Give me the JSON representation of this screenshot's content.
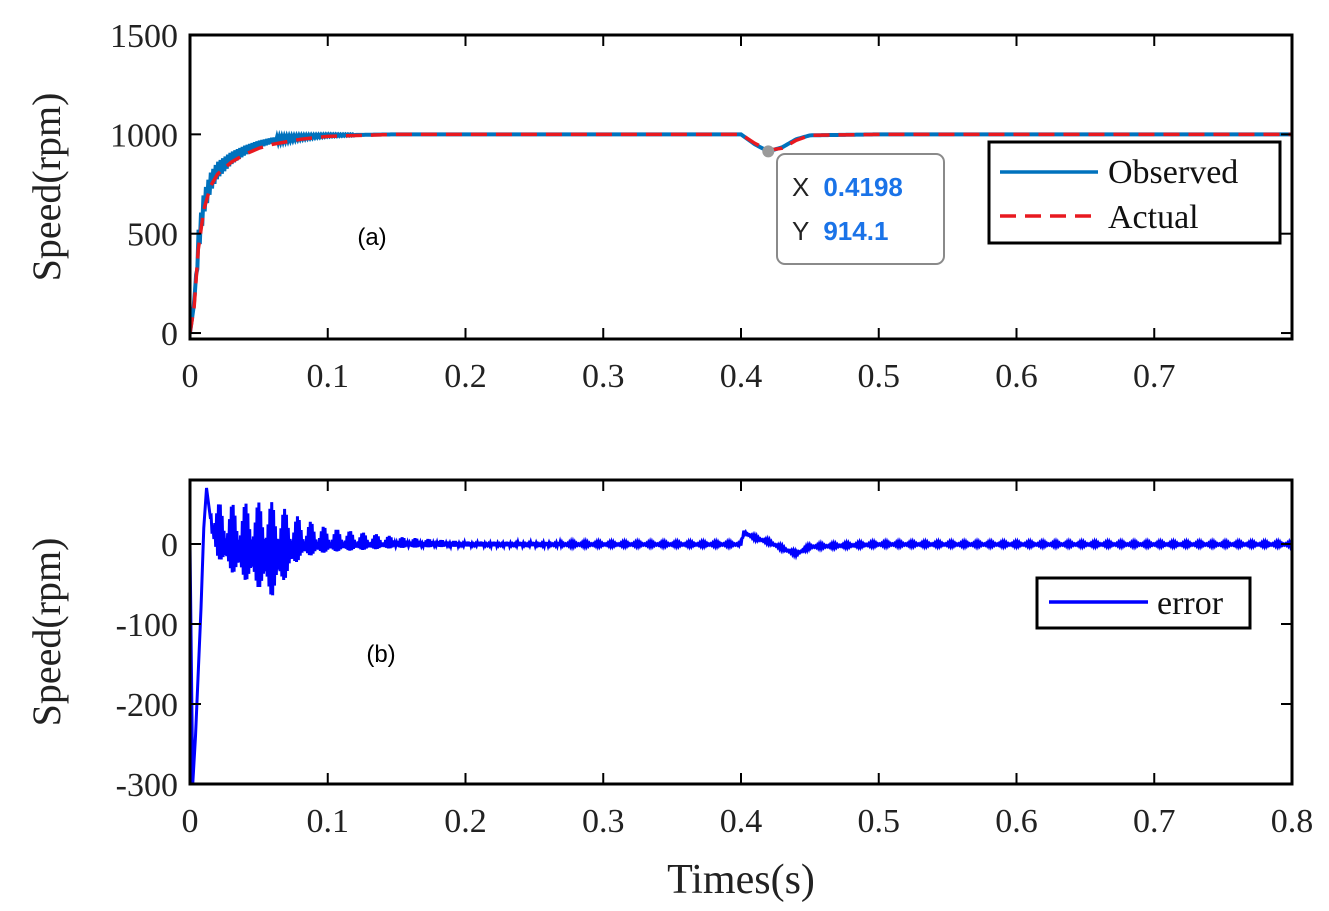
{
  "chart_data": [
    {
      "id": "a",
      "type": "line",
      "panel_label": "(a)",
      "ylabel": "Speed(rpm)",
      "xlabel": "",
      "xlim": [
        0,
        0.8
      ],
      "ylim": [
        -30,
        1500
      ],
      "xticks": [
        0,
        0.1,
        0.2,
        0.3,
        0.4,
        0.5,
        0.6,
        0.7
      ],
      "xtick_labels": [
        "0",
        "0.1",
        "0.2",
        "0.3",
        "0.4",
        "0.5",
        "0.6",
        "0.7"
      ],
      "yticks": [
        0,
        500,
        1000,
        1500
      ],
      "ytick_labels": [
        "0",
        "500",
        "1000",
        "1500"
      ],
      "legend_position": "right",
      "series": [
        {
          "name": "Observed",
          "color": "#0072BD",
          "style": "solid",
          "x": [
            0,
            0.003,
            0.006,
            0.01,
            0.015,
            0.02,
            0.03,
            0.04,
            0.05,
            0.06,
            0.08,
            0.1,
            0.15,
            0.2,
            0.3,
            0.4,
            0.41,
            0.4198,
            0.43,
            0.44,
            0.45,
            0.5,
            0.6,
            0.7,
            0.8
          ],
          "y": [
            0,
            150,
            450,
            650,
            760,
            820,
            880,
            920,
            950,
            970,
            985,
            995,
            1000,
            1000,
            1000,
            1000,
            950,
            914.1,
            935,
            975,
            995,
            1000,
            1000,
            1000,
            1000
          ]
        },
        {
          "name": "Actual",
          "color": "#E8191F",
          "style": "dashed",
          "x": [
            0,
            0.003,
            0.006,
            0.01,
            0.015,
            0.02,
            0.03,
            0.04,
            0.05,
            0.06,
            0.08,
            0.1,
            0.15,
            0.2,
            0.3,
            0.4,
            0.41,
            0.42,
            0.43,
            0.44,
            0.45,
            0.5,
            0.6,
            0.7,
            0.8
          ],
          "y": [
            0,
            130,
            420,
            620,
            740,
            800,
            860,
            900,
            930,
            950,
            975,
            990,
            1000,
            1000,
            1000,
            1000,
            955,
            920,
            930,
            970,
            995,
            1000,
            1000,
            1000,
            1000
          ]
        }
      ],
      "datatip": {
        "x_label": "X",
        "x_value": "0.4198",
        "y_label": "Y",
        "y_value": "914.1"
      }
    },
    {
      "id": "b",
      "type": "line",
      "panel_label": "(b)",
      "ylabel": "Speed(rpm)",
      "xlabel": "Times(s)",
      "xlim": [
        0,
        0.8
      ],
      "ylim": [
        -300,
        80
      ],
      "xticks": [
        0,
        0.1,
        0.2,
        0.3,
        0.4,
        0.5,
        0.6,
        0.7,
        0.8
      ],
      "xtick_labels": [
        "0",
        "0.1",
        "0.2",
        "0.3",
        "0.4",
        "0.5",
        "0.6",
        "0.7",
        "0.8"
      ],
      "yticks": [
        -300,
        -200,
        -100,
        0
      ],
      "ytick_labels": [
        "-300",
        "-200",
        "-100",
        "0"
      ],
      "legend_position": "right",
      "series": [
        {
          "name": "error",
          "color": "#0000FF",
          "style": "solid",
          "x": [
            0,
            0.002,
            0.004,
            0.006,
            0.008,
            0.01,
            0.012,
            0.015,
            0.02,
            0.03,
            0.05,
            0.08,
            0.1,
            0.15,
            0.2,
            0.3,
            0.4,
            0.402,
            0.41,
            0.42,
            0.43,
            0.44,
            0.45,
            0.5,
            0.6,
            0.7,
            0.8
          ],
          "y": [
            0,
            -300,
            -240,
            -160,
            -80,
            20,
            70,
            30,
            10,
            5,
            5,
            3,
            2,
            1,
            0,
            0,
            0,
            15,
            8,
            3,
            -5,
            -12,
            -3,
            0,
            0,
            0,
            0
          ],
          "oscillation": [
            {
              "x": 0.015,
              "upper": 40,
              "lower": -20
            },
            {
              "x": 0.03,
              "upper": 45,
              "lower": -40
            },
            {
              "x": 0.06,
              "upper": 48,
              "lower": -70
            },
            {
              "x": 0.08,
              "upper": 30,
              "lower": -20
            },
            {
              "x": 0.1,
              "upper": 18,
              "lower": -12
            },
            {
              "x": 0.15,
              "upper": 8,
              "lower": -6
            },
            {
              "x": 0.2,
              "upper": 3,
              "lower": -3
            },
            {
              "x": 0.3,
              "upper": 2,
              "lower": -2
            },
            {
              "x": 0.4,
              "upper": 2,
              "lower": -2
            },
            {
              "x": 0.8,
              "upper": 2,
              "lower": -2
            }
          ]
        }
      ]
    }
  ]
}
